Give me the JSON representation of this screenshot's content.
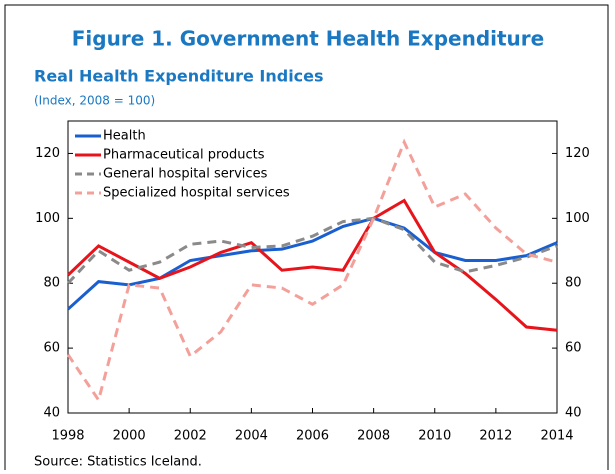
{
  "chart_data": {
    "type": "line",
    "title": "Figure 1. Government Health Expenditure",
    "subtitle": "Real Health Expenditure Indices",
    "y_label": "(Index, 2008 = 100)",
    "source": "Source: Statistics Iceland.",
    "x": [
      1998,
      1999,
      2000,
      2001,
      2002,
      2003,
      2004,
      2005,
      2006,
      2007,
      2008,
      2009,
      2010,
      2011,
      2012,
      2013,
      2014
    ],
    "xlim": [
      1998,
      2014
    ],
    "xticks": [
      1998,
      2000,
      2002,
      2004,
      2006,
      2008,
      2010,
      2012,
      2014
    ],
    "ylim": [
      40,
      130
    ],
    "yticks": [
      40,
      60,
      80,
      100,
      120
    ],
    "y2lim": [
      40,
      130
    ],
    "y2ticks": [
      40,
      60,
      80,
      100,
      120
    ],
    "series": [
      {
        "name": "Health",
        "color": "#1a5fd0",
        "dash": false,
        "values": [
          72,
          80.5,
          79.5,
          81.5,
          87,
          88.5,
          90,
          90.5,
          93,
          97.5,
          100,
          97,
          89.5,
          87,
          87,
          88.5,
          92.5
        ]
      },
      {
        "name": "Pharmaceutical products",
        "color": "#e8141b",
        "dash": false,
        "values": [
          82.5,
          91.5,
          86.5,
          81.5,
          85,
          89.5,
          92.5,
          84,
          85,
          84,
          100,
          105.5,
          89.5,
          83,
          75,
          66.5,
          65.5
        ]
      },
      {
        "name": "General hospital services",
        "color": "#8a8a8a",
        "dash": true,
        "values": [
          80,
          90,
          84,
          86.5,
          92,
          93,
          91,
          91.5,
          94.5,
          99,
          100,
          96.5,
          86.5,
          83.5,
          85.5,
          88,
          91.5
        ]
      },
      {
        "name": "Specialized hospital services",
        "color": "#f4a09a",
        "dash": true,
        "values": [
          58,
          44,
          79.5,
          78.5,
          57.5,
          65,
          79.5,
          78.5,
          73.5,
          79.5,
          100,
          123.5,
          103.5,
          107.5,
          97,
          89,
          86.5
        ]
      }
    ]
  }
}
